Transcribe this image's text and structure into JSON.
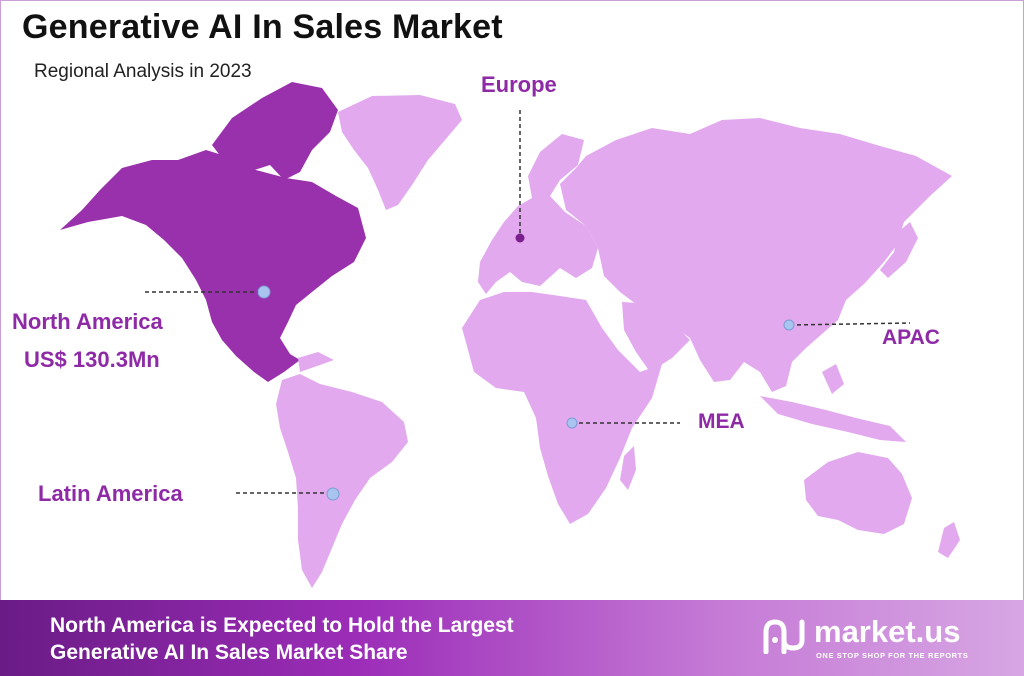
{
  "header": {
    "title": "Generative AI In Sales Market",
    "subtitle": "Regional Analysis in 2023"
  },
  "regions": {
    "europe": "Europe",
    "north_america": "North America",
    "north_america_value": "US$ 130.3Mn",
    "apac": "APAC",
    "mea": "MEA",
    "latin_america": "Latin America"
  },
  "footer": {
    "line1": "North America is Expected to Hold the Largest",
    "line2": "Generative AI In Sales Market Share"
  },
  "brand": {
    "name": "market.us",
    "tagline": "ONE STOP SHOP FOR THE REPORTS"
  },
  "colors": {
    "highlight": "#9a31ac",
    "other_regions": "#e2a9ee",
    "label": "#8e2aa6",
    "marker": "#a9c4ee",
    "footer_start": "#6a1b86",
    "footer_end": "#d7a6e3"
  }
}
